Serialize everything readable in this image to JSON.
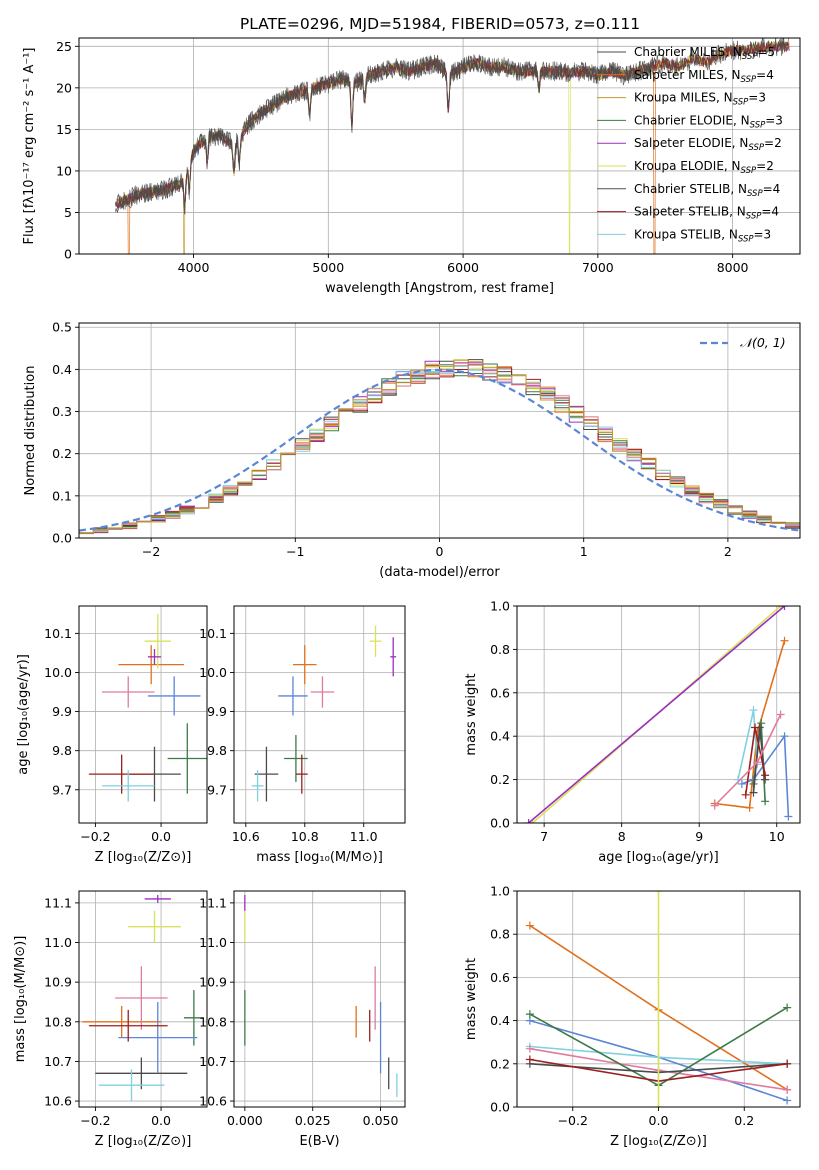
{
  "title": "PLATE=0296, MJD=51984, FIBERID=0573, z=0.111",
  "colors": [
    "#4b4b4b",
    "#e0701e",
    "#c49a2a",
    "#3c7a48",
    "#9a2fc1",
    "#d9e25a",
    "#505050",
    "#9a1f1f",
    "#7fd0e0",
    "#5b86d6",
    "#e07ba0"
  ],
  "chart_data": [
    {
      "id": "spectrum",
      "type": "line",
      "xlabel": "wavelength [Angstrom, rest frame]",
      "ylabel": "Flux [fλ10⁻¹⁷ erg cm⁻² s⁻¹ A⁻¹]",
      "xlim": [
        3150,
        8500
      ],
      "ylim": [
        0,
        26
      ],
      "xticks": [
        4000,
        5000,
        6000,
        7000,
        8000
      ],
      "yticks": [
        0,
        5,
        10,
        15,
        20,
        25
      ],
      "legend_position": "right",
      "legend": [
        {
          "label": "Chabrier MILES, N_SSP=5",
          "color": "#4b4b4b"
        },
        {
          "label": "Salpeter MILES, N_SSP=4",
          "color": "#e0701e"
        },
        {
          "label": "Kroupa MILES, N_SSP=3",
          "color": "#c49a2a"
        },
        {
          "label": "Chabrier ELODIE, N_SSP=3",
          "color": "#3c7a48"
        },
        {
          "label": "Salpeter ELODIE, N_SSP=2",
          "color": "#9a2fc1"
        },
        {
          "label": "Kroupa ELODIE, N_SSP=2",
          "color": "#d9e25a"
        },
        {
          "label": "Chabrier STELIB, N_SSP=4",
          "color": "#505050"
        },
        {
          "label": "Salpeter STELIB, N_SSP=4",
          "color": "#9a1f1f"
        },
        {
          "label": "Kroupa STELIB, N_SSP=3",
          "color": "#7fd0e0"
        }
      ],
      "continuum": {
        "x": [
          3420,
          3500,
          3600,
          3700,
          3800,
          3900,
          3950,
          4000,
          4100,
          4200,
          4300,
          4400,
          4500,
          4600,
          4700,
          4800,
          4900,
          5000,
          5100,
          5200,
          5300,
          5400,
          5500,
          5600,
          5700,
          5800,
          5900,
          6000,
          6100,
          6200,
          6300,
          6400,
          6500,
          6600,
          6700,
          6800,
          6900,
          7000,
          7100,
          7200,
          7300,
          7400,
          7500,
          7600,
          7700,
          7800,
          7900,
          8000,
          8100,
          8200,
          8300,
          8400
        ],
        "y": [
          6.0,
          6.5,
          7.2,
          7.5,
          7.8,
          8.5,
          10.0,
          12.5,
          14.0,
          14.3,
          13.0,
          15.5,
          17.0,
          18.0,
          19.0,
          19.5,
          20.0,
          20.5,
          21.0,
          20.5,
          21.5,
          22.0,
          22.5,
          22.0,
          22.5,
          23.0,
          21.5,
          22.5,
          23.0,
          22.5,
          22.5,
          22.0,
          22.0,
          22.0,
          22.0,
          21.8,
          22.0,
          21.5,
          22.0,
          21.5,
          22.0,
          22.5,
          23.0,
          22.5,
          23.5,
          23.0,
          24.0,
          24.5,
          24.5,
          24.8,
          25.0,
          25.0
        ]
      },
      "absorption_lines": [
        {
          "x": 3934,
          "depth": 0.4
        },
        {
          "x": 3969,
          "depth": 0.3
        },
        {
          "x": 4102,
          "depth": 0.2
        },
        {
          "x": 4300,
          "depth": 0.25
        },
        {
          "x": 4340,
          "depth": 0.2
        },
        {
          "x": 4861,
          "depth": 0.15
        },
        {
          "x": 5175,
          "depth": 0.25
        },
        {
          "x": 5270,
          "depth": 0.12
        },
        {
          "x": 5890,
          "depth": 0.2
        },
        {
          "x": 6563,
          "depth": 0.1
        }
      ],
      "drops": [
        {
          "x": 3520,
          "model": 1
        },
        {
          "x": 3930,
          "model": 2
        },
        {
          "x": 6790,
          "model": 5
        },
        {
          "x": 7420,
          "model": 1
        }
      ]
    },
    {
      "id": "residuals",
      "type": "line",
      "xlabel": "(data-model)/error",
      "ylabel": "Normed distribution",
      "xlim": [
        -2.5,
        2.5
      ],
      "ylim": [
        0,
        0.51
      ],
      "xticks": [
        -2,
        -1,
        0,
        1,
        2
      ],
      "xticklabels": [
        "−2",
        "−1",
        "0",
        "1",
        "2"
      ],
      "yticks": [
        0,
        0.1,
        0.2,
        0.3,
        0.4,
        0.5
      ],
      "yticklabels": [
        "0.0",
        "0.1",
        "0.2",
        "0.3",
        "0.4",
        "0.5"
      ],
      "legend_position": "top-right",
      "gaussian_label": "𝒩(0, 1)",
      "gaussian_color": "#5b86d6",
      "bin_width": 0.1
    },
    {
      "id": "age-vs-Z",
      "type": "scatter",
      "xlabel": "Z [log₁₀(Z/Z⊙)]",
      "ylabel": "age  [log₁₀(age/yr)]",
      "xlim": [
        -0.25,
        0.14
      ],
      "ylim": [
        9.615,
        10.17
      ],
      "xticks": [
        -0.2,
        0.0
      ],
      "xticklabels": [
        "−0.2",
        "0.0"
      ],
      "yticks": [
        9.7,
        9.8,
        9.9,
        10.0,
        10.1
      ],
      "yticklabels": [
        "9.7",
        "9.8",
        "9.9",
        "10.0",
        "10.1"
      ],
      "points": [
        {
          "x": -0.03,
          "y": 10.02,
          "xerr": 0.1,
          "yerr": 0.05,
          "color": "#e0701e"
        },
        {
          "x": -0.02,
          "y": 9.74,
          "xerr": 0.08,
          "yerr": 0.07,
          "color": "#4b4b4b"
        },
        {
          "x": -0.01,
          "y": 10.08,
          "xerr": 0.04,
          "yerr": 0.07,
          "color": "#d9e25a"
        },
        {
          "x": -0.02,
          "y": 10.04,
          "xerr": 0.02,
          "yerr": 0.02,
          "color": "#9a2fc1"
        },
        {
          "x": 0.08,
          "y": 9.78,
          "xerr": 0.06,
          "yerr": 0.09,
          "color": "#3c7a48"
        },
        {
          "x": 0.04,
          "y": 9.94,
          "xerr": 0.08,
          "yerr": 0.05,
          "color": "#5b86d6"
        },
        {
          "x": -0.1,
          "y": 9.95,
          "xerr": 0.08,
          "yerr": 0.04,
          "color": "#e07ba0"
        },
        {
          "x": -0.12,
          "y": 9.74,
          "xerr": 0.1,
          "yerr": 0.05,
          "color": "#9a1f1f"
        },
        {
          "x": -0.1,
          "y": 9.71,
          "xerr": 0.08,
          "yerr": 0.04,
          "color": "#7fd0e0"
        }
      ]
    },
    {
      "id": "age-vs-mass",
      "type": "scatter",
      "xlabel": "mass [log₁₀(M/M⊙)]",
      "ylabel": "",
      "xlim": [
        10.56,
        11.14
      ],
      "ylim": [
        9.615,
        10.17
      ],
      "xticks": [
        10.6,
        10.8,
        11.0
      ],
      "xticklabels": [
        "10.6",
        "10.8",
        "11.0"
      ],
      "yticks": [
        9.7,
        9.8,
        9.9,
        10.0,
        10.1
      ],
      "yticklabels": [
        "9.7",
        "9.8",
        "9.9",
        "10.0",
        "10.1"
      ],
      "points": [
        {
          "x": 10.8,
          "y": 10.02,
          "xerr": 0.04,
          "yerr": 0.05,
          "color": "#e0701e"
        },
        {
          "x": 10.67,
          "y": 9.74,
          "xerr": 0.04,
          "yerr": 0.07,
          "color": "#4b4b4b"
        },
        {
          "x": 11.04,
          "y": 10.08,
          "xerr": 0.02,
          "yerr": 0.04,
          "color": "#d9e25a"
        },
        {
          "x": 11.1,
          "y": 10.04,
          "xerr": 0.01,
          "yerr": 0.05,
          "color": "#9a2fc1"
        },
        {
          "x": 10.77,
          "y": 9.78,
          "xerr": 0.04,
          "yerr": 0.06,
          "color": "#3c7a48"
        },
        {
          "x": 10.76,
          "y": 9.94,
          "xerr": 0.05,
          "yerr": 0.05,
          "color": "#5b86d6"
        },
        {
          "x": 10.86,
          "y": 9.95,
          "xerr": 0.04,
          "yerr": 0.04,
          "color": "#e07ba0"
        },
        {
          "x": 10.79,
          "y": 9.74,
          "xerr": 0.02,
          "yerr": 0.05,
          "color": "#9a1f1f"
        },
        {
          "x": 10.64,
          "y": 9.71,
          "xerr": 0.02,
          "yerr": 0.04,
          "color": "#7fd0e0"
        }
      ]
    },
    {
      "id": "weight-vs-age",
      "type": "line",
      "xlabel": "age  [log₁₀(age/yr)]",
      "ylabel": "mass weight",
      "xlim": [
        6.65,
        10.3
      ],
      "ylim": [
        0,
        1.0
      ],
      "xticks": [
        7,
        8,
        9,
        10
      ],
      "yticks": [
        0,
        0.2,
        0.4,
        0.6,
        0.8,
        1.0
      ],
      "yticklabels": [
        "0.0",
        "0.2",
        "0.4",
        "0.6",
        "0.8",
        "1.0"
      ],
      "series": [
        {
          "color": "#d9e25a",
          "x": [
            6.85,
            10.05
          ],
          "y": [
            0.0,
            1.0
          ]
        },
        {
          "color": "#9a2fc1",
          "x": [
            6.8,
            10.1
          ],
          "y": [
            0.0,
            1.0
          ]
        },
        {
          "color": "#e0701e",
          "x": [
            9.2,
            9.65,
            9.75,
            10.1
          ],
          "y": [
            0.09,
            0.07,
            0.42,
            0.84
          ]
        },
        {
          "color": "#5b86d6",
          "x": [
            9.55,
            9.7,
            10.1,
            10.15
          ],
          "y": [
            0.18,
            0.2,
            0.4,
            0.03
          ]
        },
        {
          "color": "#7fd0e0",
          "x": [
            9.5,
            9.7,
            9.75
          ],
          "y": [
            0.2,
            0.52,
            0.27
          ]
        },
        {
          "color": "#3c7a48",
          "x": [
            9.7,
            9.8,
            9.85
          ],
          "y": [
            0.18,
            0.46,
            0.1
          ]
        },
        {
          "color": "#4b4b4b",
          "x": [
            9.7,
            9.78,
            9.85
          ],
          "y": [
            0.14,
            0.44,
            0.2
          ]
        },
        {
          "color": "#9a1f1f",
          "x": [
            9.6,
            9.72,
            9.85
          ],
          "y": [
            0.13,
            0.44,
            0.22
          ]
        },
        {
          "color": "#e07ba0",
          "x": [
            9.2,
            9.75,
            10.05
          ],
          "y": [
            0.08,
            0.28,
            0.5
          ]
        }
      ]
    },
    {
      "id": "mass-vs-Z",
      "type": "scatter",
      "xlabel": "Z [log₁₀(Z/Z⊙)]",
      "ylabel": "mass [log₁₀(M/M⊙)]",
      "xlim": [
        -0.25,
        0.14
      ],
      "ylim": [
        10.585,
        11.13
      ],
      "xticks": [
        -0.2,
        0.0
      ],
      "xticklabels": [
        "−0.2",
        "0.0"
      ],
      "yticks": [
        10.6,
        10.7,
        10.8,
        10.9,
        11.0,
        11.1
      ],
      "yticklabels": [
        "10.6",
        "10.7",
        "10.8",
        "10.9",
        "11.0",
        "11.1"
      ],
      "points": [
        {
          "x": -0.12,
          "y": 10.8,
          "xerr": 0.12,
          "yerr": 0.04,
          "color": "#e0701e"
        },
        {
          "x": -0.06,
          "y": 10.67,
          "xerr": 0.14,
          "yerr": 0.04,
          "color": "#4b4b4b"
        },
        {
          "x": -0.02,
          "y": 11.04,
          "xerr": 0.08,
          "yerr": 0.04,
          "color": "#d9e25a"
        },
        {
          "x": -0.01,
          "y": 11.11,
          "xerr": 0.04,
          "yerr": 0.01,
          "color": "#9a2fc1"
        },
        {
          "x": 0.1,
          "y": 10.81,
          "xerr": 0.03,
          "yerr": 0.07,
          "color": "#3c7a48"
        },
        {
          "x": -0.01,
          "y": 10.76,
          "xerr": 0.12,
          "yerr": 0.09,
          "color": "#5b86d6"
        },
        {
          "x": -0.06,
          "y": 10.86,
          "xerr": 0.08,
          "yerr": 0.08,
          "color": "#e07ba0"
        },
        {
          "x": -0.1,
          "y": 10.79,
          "xerr": 0.12,
          "yerr": 0.04,
          "color": "#9a1f1f"
        },
        {
          "x": -0.09,
          "y": 10.64,
          "xerr": 0.1,
          "yerr": 0.04,
          "color": "#7fd0e0"
        }
      ]
    },
    {
      "id": "mass-vs-ebv",
      "type": "scatter",
      "xlabel": "E(B-V)",
      "ylabel": "",
      "xlim": [
        -0.004,
        0.059
      ],
      "ylim": [
        10.585,
        11.13
      ],
      "xticks": [
        0.0,
        0.025,
        0.05
      ],
      "xticklabels": [
        "0.000",
        "0.025",
        "0.050"
      ],
      "yticks": [
        10.6,
        10.7,
        10.8,
        10.9,
        11.0,
        11.1
      ],
      "yticklabels": [
        "10.6",
        "10.7",
        "10.8",
        "10.9",
        "11.0",
        "11.1"
      ],
      "points": [
        {
          "x": 0.0,
          "y": 11.04,
          "xerr": 0.0,
          "yerr": 0.04,
          "color": "#d9e25a"
        },
        {
          "x": 0.0,
          "y": 11.1,
          "xerr": 0.0,
          "yerr": 0.02,
          "color": "#9a2fc1"
        },
        {
          "x": 0.0,
          "y": 10.81,
          "xerr": 0.0,
          "yerr": 0.07,
          "color": "#3c7a48"
        },
        {
          "x": 0.041,
          "y": 10.8,
          "xerr": 0.0,
          "yerr": 0.04,
          "color": "#e0701e"
        },
        {
          "x": 0.046,
          "y": 10.79,
          "xerr": 0.0,
          "yerr": 0.04,
          "color": "#9a1f1f"
        },
        {
          "x": 0.048,
          "y": 10.86,
          "xerr": 0.0,
          "yerr": 0.08,
          "color": "#e07ba0"
        },
        {
          "x": 0.05,
          "y": 10.76,
          "xerr": 0.0,
          "yerr": 0.09,
          "color": "#5b86d6"
        },
        {
          "x": 0.053,
          "y": 10.67,
          "xerr": 0.0,
          "yerr": 0.04,
          "color": "#4b4b4b"
        },
        {
          "x": 0.056,
          "y": 10.64,
          "xerr": 0.0,
          "yerr": 0.03,
          "color": "#7fd0e0"
        }
      ]
    },
    {
      "id": "weight-vs-Z",
      "type": "line",
      "xlabel": "Z [log₁₀(Z/Z⊙)]",
      "ylabel": "mass weight",
      "xlim": [
        -0.33,
        0.33
      ],
      "ylim": [
        0,
        1.0
      ],
      "xticks": [
        -0.2,
        0.0,
        0.2
      ],
      "xticklabels": [
        "−0.2",
        "0.0",
        "0.2"
      ],
      "yticks": [
        0,
        0.2,
        0.4,
        0.6,
        0.8,
        1.0
      ],
      "yticklabels": [
        "0.0",
        "0.2",
        "0.4",
        "0.6",
        "0.8",
        "1.0"
      ],
      "series": [
        {
          "color": "#e0701e",
          "x": [
            -0.3,
            0.0,
            0.3
          ],
          "y": [
            0.84,
            0.45,
            0.08
          ]
        },
        {
          "color": "#5b86d6",
          "x": [
            -0.3,
            0.0,
            0.3
          ],
          "y": [
            0.4,
            0.23,
            0.03
          ]
        },
        {
          "color": "#7fd0e0",
          "x": [
            -0.3,
            0.0,
            0.3
          ],
          "y": [
            0.28,
            0.23,
            0.2
          ]
        },
        {
          "color": "#e07ba0",
          "x": [
            -0.3,
            0.0,
            0.3
          ],
          "y": [
            0.27,
            0.17,
            0.08
          ]
        },
        {
          "color": "#3c7a48",
          "x": [
            -0.3,
            0.0,
            0.3
          ],
          "y": [
            0.43,
            0.1,
            0.46
          ]
        },
        {
          "color": "#4b4b4b",
          "x": [
            -0.3,
            0.0,
            0.3
          ],
          "y": [
            0.2,
            0.16,
            0.2
          ]
        },
        {
          "color": "#9a1f1f",
          "x": [
            -0.3,
            0.0,
            0.3
          ],
          "y": [
            0.22,
            0.12,
            0.2
          ]
        },
        {
          "color": "#d9e25a",
          "x": [
            0.0,
            0.0
          ],
          "y": [
            0.0,
            1.0
          ]
        }
      ]
    }
  ]
}
